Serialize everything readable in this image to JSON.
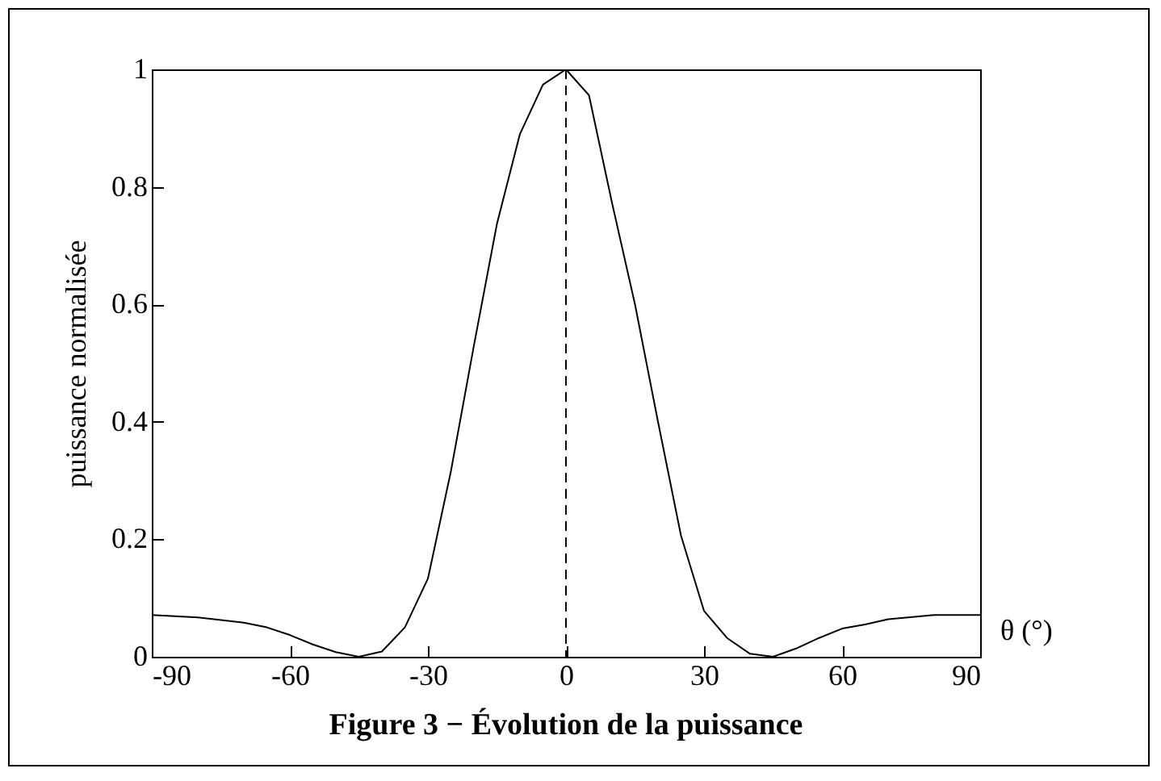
{
  "chart_data": {
    "type": "line",
    "title": "Figure 3 − Évolution de la puissance",
    "xlabel": "θ (°)",
    "ylabel": "puissance normalisée",
    "x": [
      -90,
      -80,
      -70,
      -65,
      -60,
      -55,
      -50,
      -45,
      -40,
      -35,
      -30,
      -25,
      -20,
      -15,
      -10,
      -5,
      0,
      5,
      10,
      15,
      20,
      25,
      30,
      35,
      40,
      45,
      50,
      55,
      60,
      65,
      70,
      80,
      90
    ],
    "series": [
      {
        "color": "#000000",
        "values": [
          0.071,
          0.067,
          0.058,
          0.05,
          0.037,
          0.021,
          0.008,
          0,
          0.009,
          0.05,
          0.133,
          0.316,
          0.53,
          0.737,
          0.89,
          0.974,
          1,
          0.956,
          0.773,
          0.6,
          0.4,
          0.206,
          0.078,
          0.032,
          0.005,
          0,
          0.014,
          0.032,
          0.048,
          0.055,
          0.064,
          0.071,
          0.071
        ]
      }
    ],
    "xlim": [
      -90,
      90
    ],
    "ylim": [
      0,
      1
    ],
    "xticks": [
      -90,
      -60,
      -30,
      0,
      30,
      60,
      90
    ],
    "yticks": [
      0,
      0.2,
      0.4,
      0.6,
      0.8,
      1
    ],
    "ref_lines": [
      {
        "axis": "x",
        "value": 0,
        "color": "#000000",
        "line_style": "dashed"
      }
    ],
    "grid": false,
    "marker": "none",
    "line_style": "solid"
  }
}
